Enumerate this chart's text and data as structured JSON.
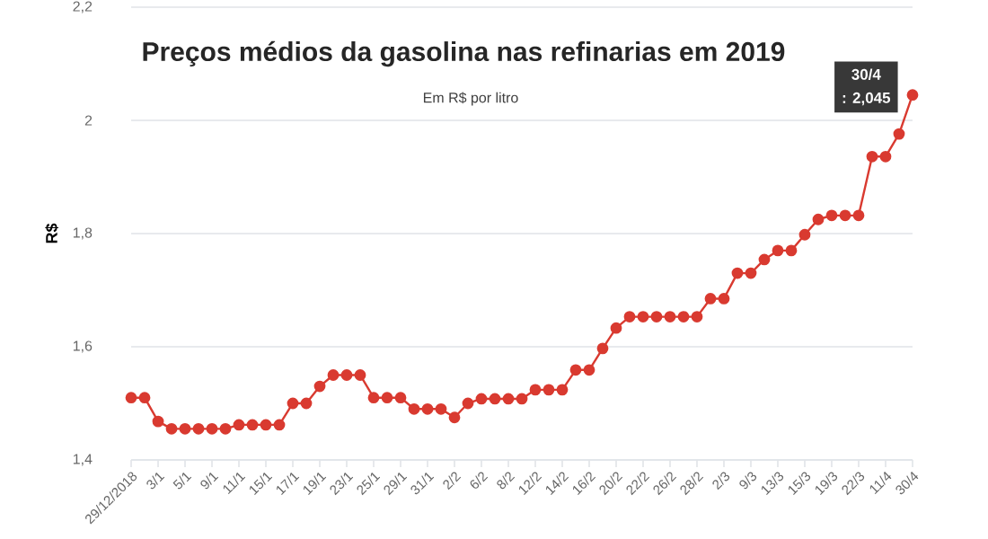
{
  "chart_data": {
    "type": "line",
    "title": "Preços médios da gasolina nas refinarias em 2019",
    "subtitle": "Em R$ por litro",
    "ylabel": "R$",
    "categories": [
      "29/12/2018",
      null,
      "3/1",
      null,
      "5/1",
      null,
      "9/1",
      null,
      "11/1",
      null,
      "15/1",
      null,
      "17/1",
      null,
      "19/1",
      null,
      "23/1",
      null,
      "25/1",
      null,
      "29/1",
      null,
      "31/1",
      null,
      "2/2",
      null,
      "6/2",
      null,
      "8/2",
      null,
      "12/2",
      null,
      "14/2",
      null,
      "16/2",
      null,
      "20/2",
      null,
      "22/2",
      null,
      "26/2",
      null,
      "28/2",
      null,
      "2/3",
      null,
      "9/3",
      null,
      "13/3",
      null,
      "15/3",
      null,
      "19/3",
      null,
      "22/3",
      null,
      "11/4",
      null,
      "30/4"
    ],
    "series": [
      {
        "color": "#d93a30",
        "values": [
          1.51,
          1.51,
          1.468,
          1.455,
          1.455,
          1.455,
          1.455,
          1.455,
          1.462,
          1.462,
          1.462,
          1.462,
          1.5,
          1.5,
          1.53,
          1.55,
          1.55,
          1.55,
          1.51,
          1.51,
          1.51,
          1.49,
          1.49,
          1.49,
          1.475,
          1.5,
          1.508,
          1.508,
          1.508,
          1.508,
          1.524,
          1.524,
          1.524,
          1.559,
          1.559,
          1.597,
          1.633,
          1.653,
          1.653,
          1.653,
          1.653,
          1.653,
          1.653,
          1.685,
          1.685,
          1.73,
          1.73,
          1.754,
          1.77,
          1.77,
          1.798,
          1.825,
          1.832,
          1.832,
          1.832,
          1.936,
          1.936,
          1.976,
          2.045
        ]
      }
    ],
    "ylim": [
      1.4,
      2.2
    ],
    "yticks": [
      {
        "value": 1.4,
        "label": "1,4"
      },
      {
        "value": 1.6,
        "label": "1,6"
      },
      {
        "value": 1.8,
        "label": "1,8"
      },
      2,
      {
        "value": 2.2,
        "label": "2,2"
      }
    ],
    "grid": "y",
    "marker": "circle",
    "line_style": "solid",
    "annotations": [
      "30/4",
      ": 2,045"
    ]
  }
}
